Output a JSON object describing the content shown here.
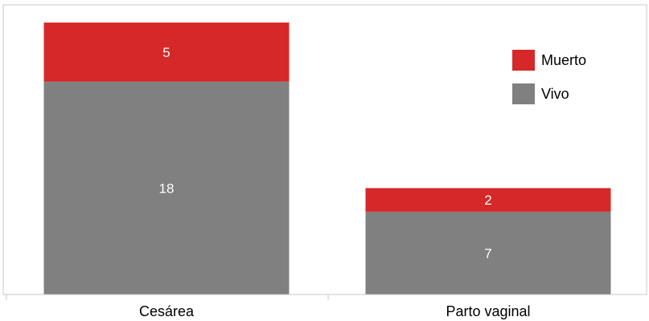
{
  "chart_data": {
    "type": "bar",
    "stacked": true,
    "categories": [
      "Cesárea",
      "Parto vaginal"
    ],
    "series": [
      {
        "name": "Vivo",
        "values": [
          18,
          7
        ],
        "color": "#808080"
      },
      {
        "name": "Muerto",
        "values": [
          5,
          2
        ],
        "color": "#d62828"
      }
    ],
    "legend_order": [
      "Muerto",
      "Vivo"
    ],
    "legend_position": "top-right",
    "ylim": [
      0,
      24.5
    ],
    "grid": false,
    "title": "",
    "xlabel": "",
    "ylabel": ""
  }
}
